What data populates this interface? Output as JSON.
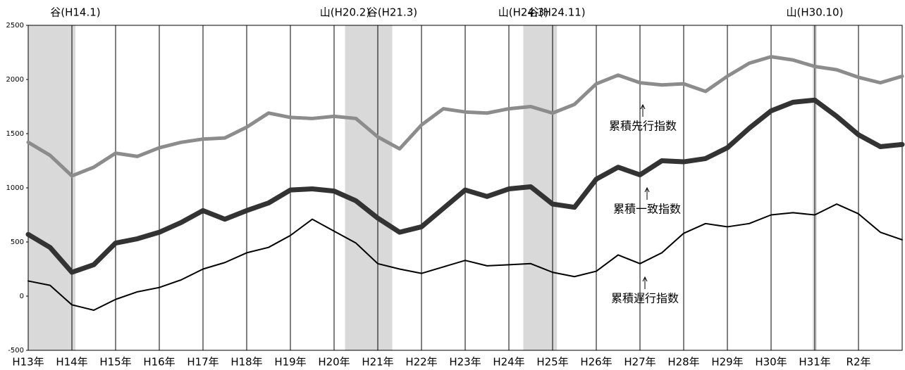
{
  "chart_data": {
    "type": "line",
    "x": [
      13,
      13.5,
      14,
      14.5,
      15,
      15.5,
      16,
      16.5,
      17,
      17.5,
      18,
      18.5,
      19,
      19.5,
      20,
      20.5,
      21,
      21.5,
      22,
      22.5,
      23,
      23.5,
      24,
      24.5,
      25,
      25.5,
      26,
      26.5,
      27,
      27.5,
      28,
      28.5,
      29,
      29.5,
      30,
      30.5,
      31,
      31.5,
      32,
      32.5,
      33
    ],
    "series": [
      {
        "name": "累積先行指数",
        "color": "#8c8c8c",
        "width": 5,
        "values": [
          1420,
          1300,
          1110,
          1190,
          1320,
          1290,
          1370,
          1420,
          1450,
          1460,
          1560,
          1690,
          1650,
          1640,
          1660,
          1640,
          1470,
          1360,
          1580,
          1730,
          1700,
          1690,
          1730,
          1750,
          1690,
          1770,
          1960,
          2040,
          1970,
          1950,
          1960,
          1890,
          2030,
          2150,
          2210,
          2180,
          2120,
          2090,
          2020,
          1970,
          2030
        ]
      },
      {
        "name": "累積一致指数",
        "color": "#333333",
        "width": 7,
        "values": [
          570,
          450,
          220,
          290,
          490,
          530,
          590,
          680,
          790,
          710,
          790,
          860,
          980,
          990,
          970,
          880,
          720,
          590,
          640,
          810,
          980,
          920,
          990,
          1010,
          850,
          820,
          1080,
          1190,
          1120,
          1250,
          1240,
          1270,
          1370,
          1550,
          1710,
          1790,
          1810,
          1660,
          1490,
          1380,
          1400
        ]
      },
      {
        "name": "累積遅行指数",
        "color": "#000000",
        "width": 2,
        "values": [
          140,
          100,
          -80,
          -130,
          -30,
          40,
          80,
          150,
          250,
          310,
          400,
          450,
          560,
          710,
          600,
          490,
          300,
          250,
          210,
          270,
          330,
          280,
          290,
          300,
          220,
          180,
          230,
          380,
          300,
          400,
          580,
          670,
          640,
          670,
          750,
          770,
          750,
          850,
          760,
          590,
          520
        ]
      }
    ],
    "xlim": [
      13,
      33
    ],
    "xticks": [
      {
        "value": 13,
        "label": "H13年"
      },
      {
        "value": 14,
        "label": "H14年"
      },
      {
        "value": 15,
        "label": "H15年"
      },
      {
        "value": 16,
        "label": "H16年"
      },
      {
        "value": 17,
        "label": "H17年"
      },
      {
        "value": 18,
        "label": "H18年"
      },
      {
        "value": 19,
        "label": "H19年"
      },
      {
        "value": 20,
        "label": "H20年"
      },
      {
        "value": 21,
        "label": "H21年"
      },
      {
        "value": 22,
        "label": "H22年"
      },
      {
        "value": 23,
        "label": "H23年"
      },
      {
        "value": 24,
        "label": "H24年"
      },
      {
        "value": 25,
        "label": "H25年"
      },
      {
        "value": 26,
        "label": "H26年"
      },
      {
        "value": 27,
        "label": "H27年"
      },
      {
        "value": 28,
        "label": "H28年"
      },
      {
        "value": 29,
        "label": "H29年"
      },
      {
        "value": 30,
        "label": "H30年"
      },
      {
        "value": 31,
        "label": "H31年"
      },
      {
        "value": 32,
        "label": "R2年"
      }
    ],
    "ylim": [
      -500,
      2500
    ],
    "yticks": [
      -500,
      0,
      500,
      1000,
      1500,
      2000,
      2500
    ],
    "turning_points": [
      {
        "label": "谷(H14.1)",
        "x": 14.08
      },
      {
        "label": "山(H20.2)",
        "x": 20.25
      },
      {
        "label": "谷(H21.3)",
        "x": 21.33
      },
      {
        "label": "山(H24.3)",
        "x": 24.33
      },
      {
        "label": "谷(H24.11)",
        "x": 25.1
      },
      {
        "label": "山(H30.10)",
        "x": 31.0
      }
    ]
  }
}
